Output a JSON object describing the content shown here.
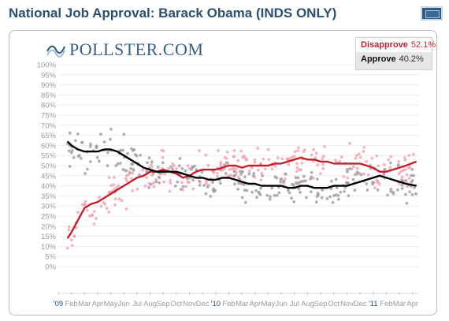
{
  "header": {
    "title": "National Job Approval: Barack Obama (INDS ONLY)"
  },
  "logo": {
    "text": "POLLSTER.COM",
    "icon": "pollster-wave-icon"
  },
  "legend": {
    "items": [
      {
        "label": "Disapprove",
        "value": "52.1%",
        "color": "#c31f30"
      },
      {
        "label": "Approve",
        "value": "40.2%",
        "color": "#000000"
      }
    ]
  },
  "chart_data": {
    "type": "line",
    "title": "National Job Approval: Barack Obama (INDS ONLY)",
    "ylim": [
      0,
      100
    ],
    "yticks": [
      "0%",
      "5%",
      "10%",
      "15%",
      "20%",
      "25%",
      "30%",
      "35%",
      "40%",
      "45%",
      "50%",
      "55%",
      "60%",
      "65%",
      "70%",
      "75%",
      "80%",
      "85%",
      "90%",
      "95%",
      "100%"
    ],
    "xticks": [
      "'09",
      "Feb",
      "Mar",
      "Apr",
      "May",
      "Jun",
      "Jul",
      "Aug",
      "Sep",
      "Oct",
      "Nov",
      "Dec",
      "'10",
      "Feb",
      "Mar",
      "Apr",
      "May",
      "Jun",
      "Jul",
      "Aug",
      "Sep",
      "Oct",
      "Nov",
      "Dec",
      "'11",
      "Feb",
      "Mar",
      "Apr"
    ],
    "grid": true,
    "legend_position": "top-right",
    "series": [
      {
        "name": "Disapprove",
        "color": "#c31f30",
        "x": [
          0.7,
          1.0,
          1.5,
          2.0,
          2.5,
          3.0,
          3.5,
          4.0,
          4.5,
          5.0,
          5.5,
          6.0,
          6.5,
          7.0,
          7.5,
          8.0,
          8.5,
          9.0,
          9.5,
          10.0,
          10.5,
          11.0,
          11.5,
          12.0,
          12.5,
          13.0,
          13.5,
          14.0,
          14.5,
          15.0,
          15.5,
          16.0,
          16.5,
          17.0,
          17.5,
          18.0,
          18.5,
          19.0,
          19.5,
          20.0,
          20.5,
          21.0,
          21.5,
          22.0,
          22.5,
          23.0,
          23.5,
          24.0,
          24.5,
          25.0,
          25.5,
          26.0,
          26.5,
          27.3
        ],
        "values": [
          14,
          17,
          23,
          29,
          31,
          32,
          34,
          36,
          38,
          40,
          42,
          44,
          45,
          47,
          47,
          48,
          47,
          46,
          44,
          45,
          47,
          48,
          48,
          48,
          49,
          50,
          50,
          49,
          50,
          50,
          50,
          50,
          51,
          51,
          52,
          53,
          54,
          53,
          53,
          52,
          52,
          51,
          51,
          51,
          51,
          51,
          50,
          49,
          47,
          47,
          48,
          49,
          50,
          52
        ]
      },
      {
        "name": "Approve",
        "color": "#000000",
        "x": [
          0.7,
          1.0,
          1.5,
          2.0,
          2.5,
          3.0,
          3.5,
          4.0,
          4.5,
          5.0,
          5.5,
          6.0,
          6.5,
          7.0,
          7.5,
          8.0,
          8.5,
          9.0,
          9.5,
          10.0,
          10.5,
          11.0,
          11.5,
          12.0,
          12.5,
          13.0,
          13.5,
          14.0,
          14.5,
          15.0,
          15.5,
          16.0,
          16.5,
          17.0,
          17.5,
          18.0,
          18.5,
          19.0,
          19.5,
          20.0,
          20.5,
          21.0,
          21.5,
          22.0,
          22.5,
          23.0,
          23.5,
          24.0,
          24.5,
          25.0,
          25.5,
          26.0,
          26.5,
          27.3
        ],
        "values": [
          62,
          60,
          58,
          57,
          57,
          57,
          58,
          58,
          57,
          55,
          53,
          51,
          49,
          48,
          47,
          47,
          47,
          47,
          46,
          45,
          44,
          44,
          43,
          43,
          44,
          44,
          43,
          42,
          41,
          41,
          40,
          40,
          40,
          40,
          39,
          39,
          40,
          40,
          39,
          39,
          39,
          40,
          40,
          40,
          41,
          42,
          43,
          44,
          45,
          44,
          43,
          42,
          41,
          40
        ]
      }
    ]
  }
}
